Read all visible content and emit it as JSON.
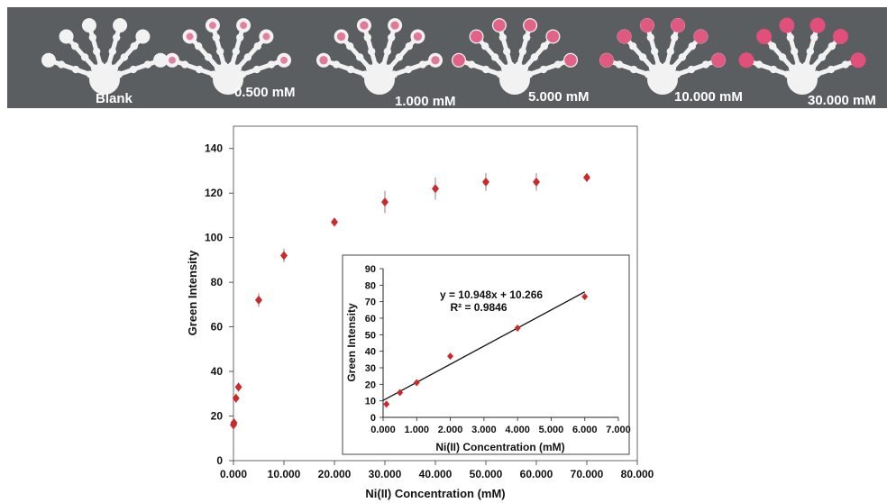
{
  "strip": {
    "labels": [
      "Blank",
      "0.500 mM",
      "1.000 mM",
      "5.000 mM",
      "10.000 mM",
      "30.000 mM"
    ],
    "background_color": "#5a5e60",
    "device_color": "#f2f2f2",
    "stain_color": "#e0507a"
  },
  "chart_data": [
    {
      "type": "scatter",
      "xlabel": "Ni(II) Concentration (mM)",
      "ylabel": "Green Intensity",
      "xlim": [
        0,
        80
      ],
      "ylim": [
        0,
        150
      ],
      "x_ticks": [
        "0.000",
        "10.000",
        "20.000",
        "30.000",
        "40.000",
        "50.000",
        "60.000",
        "70.000",
        "80.000"
      ],
      "y_ticks": [
        "0",
        "20",
        "40",
        "60",
        "80",
        "100",
        "120",
        "140"
      ],
      "marker_color": "#cc2a2a",
      "series": [
        {
          "x": [
            0,
            0.1,
            0.5,
            1,
            5,
            10,
            20,
            30,
            40,
            50,
            60,
            70
          ],
          "y": [
            16,
            17,
            28,
            33,
            72,
            92,
            107,
            116,
            122,
            125,
            125,
            127
          ],
          "error": [
            2,
            2,
            2,
            2,
            3,
            3,
            2,
            5,
            5,
            4,
            4,
            2
          ]
        }
      ]
    },
    {
      "type": "scatter",
      "xlabel": "Ni(II) Concentration (mM)",
      "ylabel": "Green Intensity",
      "xlim": [
        0,
        7
      ],
      "ylim": [
        0,
        90
      ],
      "x_ticks": [
        "0.000",
        "1.000",
        "2.000",
        "3.000",
        "4.000",
        "5.000",
        "6.000",
        "7.000"
      ],
      "y_ticks": [
        "0",
        "10",
        "20",
        "30",
        "40",
        "50",
        "60",
        "70",
        "80",
        "90"
      ],
      "marker_color": "#cc2a2a",
      "series": [
        {
          "x": [
            0.1,
            0.5,
            1,
            2,
            4,
            6
          ],
          "y": [
            8,
            15,
            21,
            37,
            54,
            73
          ]
        }
      ],
      "trendline": {
        "slope": 10.948,
        "intercept": 10.266
      },
      "annotations": [
        "y = 10.948x + 10.266",
        "R² = 0.9846"
      ]
    }
  ]
}
